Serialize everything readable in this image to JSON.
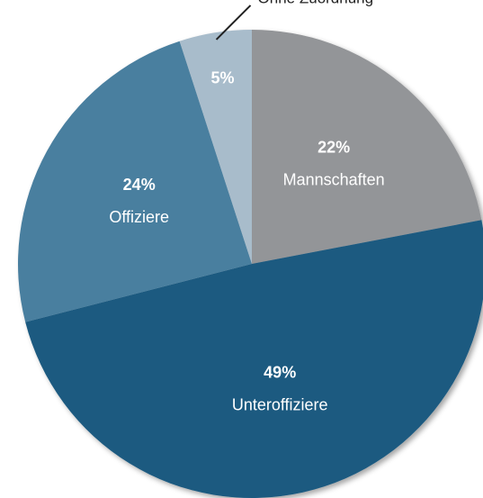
{
  "chart_data": {
    "type": "pie",
    "categories": [
      "Mannschaften",
      "Unteroffiziere",
      "Offiziere",
      "Ohne Zuordnung"
    ],
    "values": [
      22,
      49,
      24,
      5
    ],
    "value_labels": [
      "22%",
      "49%",
      "24%",
      "5%"
    ],
    "colors": [
      "#939598",
      "#1b5a80",
      "#4a7f9f",
      "#a8bccb"
    ]
  }
}
